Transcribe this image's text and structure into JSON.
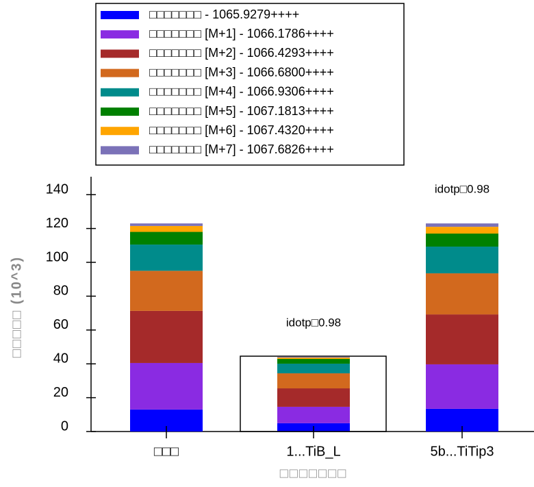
{
  "chart_data": {
    "type": "stacked_bar",
    "categories": [
      "□□□",
      "1...TiB_L",
      "5b...TiTip3"
    ],
    "series": [
      {
        "name": "□□□□□□□ - 1065.9279++++",
        "color": "#0000ff",
        "values": [
          13,
          4.9,
          13.4
        ]
      },
      {
        "name": "□□□□□□□ [M+1] - 1066.1786++++",
        "color": "#8a2be2",
        "values": [
          27.5,
          9.7,
          26.3
        ]
      },
      {
        "name": "□□□□□□□ [M+2] - 1066.4293++++",
        "color": "#a52a2a",
        "values": [
          30.8,
          10.9,
          29.5
        ]
      },
      {
        "name": "□□□□□□□ [M+3] - 1066.6800++++",
        "color": "#d2691e",
        "values": [
          23.7,
          8.9,
          24.3
        ]
      },
      {
        "name": "□□□□□□□ [M+4] - 1066.9306++++",
        "color": "#008b8b",
        "values": [
          15.5,
          5.7,
          15.8
        ]
      },
      {
        "name": "□□□□□□□ [M+5] - 1067.1813++++",
        "color": "#008000",
        "values": [
          7.5,
          2.8,
          7.7
        ]
      },
      {
        "name": "□□□□□□□ [M+6] - 1067.4320++++",
        "color": "#ffa500",
        "values": [
          3.5,
          0.8,
          4
        ]
      },
      {
        "name": "□□□□□□□ [M+7] - 1067.6826++++",
        "color": "#7b72b8",
        "values": [
          1.5,
          0.4,
          2
        ]
      }
    ],
    "bar_labels": [
      null,
      "idotp□0.98",
      "idotp□0.98"
    ],
    "x_label": "□□□□□□□",
    "y_label": "□□□□□ (10^3)",
    "ylim": [
      0,
      150
    ],
    "yticks": [
      0,
      20,
      40,
      60,
      80,
      100,
      120,
      140
    ]
  }
}
